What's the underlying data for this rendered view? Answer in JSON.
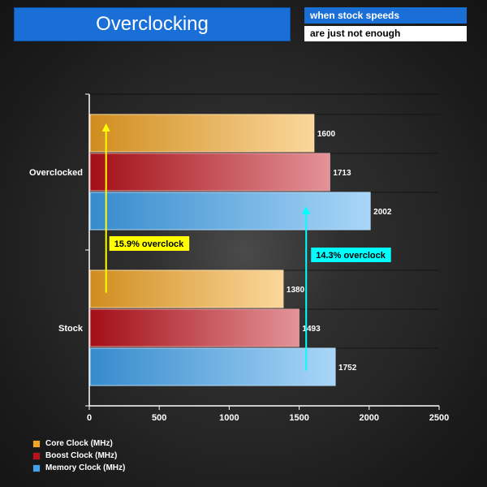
{
  "header": {
    "title": "Overclocking",
    "subtitle_line1": "when stock speeds",
    "subtitle_line2": "are just not enough"
  },
  "chart_data": {
    "type": "bar",
    "orientation": "horizontal",
    "categories": [
      "Overclocked",
      "Stock"
    ],
    "series": [
      {
        "name": "Core Clock (MHz)",
        "values": [
          1600,
          1380
        ],
        "color": "#f5a623"
      },
      {
        "name": "Boost Clock (MHz)",
        "values": [
          1713,
          1493
        ],
        "color": "#c0101a"
      },
      {
        "name": "Memory Clock (MHz)",
        "values": [
          2002,
          1752
        ],
        "color": "#3fa3f0"
      }
    ],
    "xlim": [
      0,
      2500
    ],
    "xticks": [
      0,
      500,
      1000,
      1500,
      2000,
      2500
    ],
    "grid": true,
    "legend_position": "bottom-left",
    "annotations": [
      {
        "text": "15.9% overclock",
        "series": "Core Clock (MHz)",
        "color": "#ffff00"
      },
      {
        "text": "14.3% overclock",
        "series": "Memory Clock (MHz)",
        "color": "#00ffff"
      }
    ]
  }
}
